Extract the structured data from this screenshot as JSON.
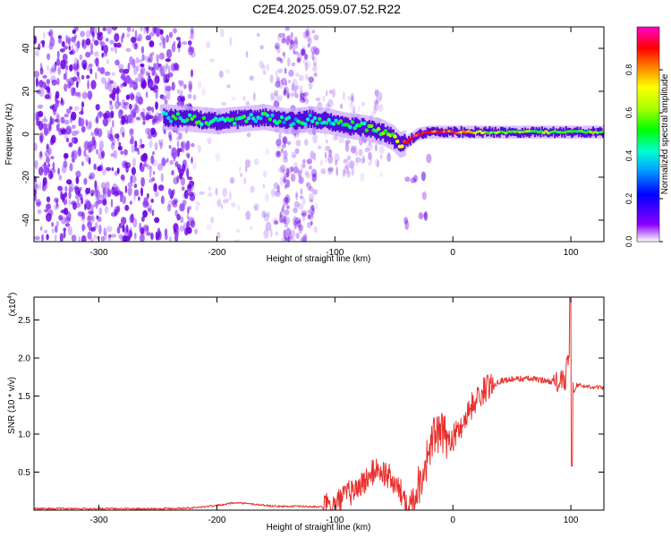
{
  "title": "C2E4.2025.059.07.52.R22",
  "chart_data": [
    {
      "type": "heatmap",
      "xlabel": "Height of straight line (km)",
      "ylabel": "Frequency (Hz)",
      "xlim": [
        -355,
        128
      ],
      "ylim": [
        -50,
        50
      ],
      "xticks": [
        -300,
        -200,
        -100,
        0,
        100
      ],
      "yticks": [
        -40,
        -20,
        0,
        20,
        40
      ],
      "colorbar": {
        "label": "Normalized spectral amplitude",
        "range": [
          0.0,
          1.0
        ],
        "ticks": [
          0.0,
          0.2,
          0.4,
          0.6,
          0.8
        ]
      },
      "ridge": {
        "x": [
          -245,
          -220,
          -200,
          -180,
          -160,
          -140,
          -120,
          -105,
          -90,
          -75,
          -60,
          -50,
          -45,
          -40,
          -35,
          -30,
          -20,
          -10,
          0,
          10,
          30,
          60,
          90,
          128
        ],
        "frequency": [
          8,
          7,
          6,
          7,
          8,
          6,
          7,
          6,
          4,
          3,
          1,
          -2,
          -5,
          -4,
          -2,
          0,
          1,
          1,
          1,
          1,
          1,
          1,
          1,
          1
        ],
        "amplitude": [
          0.45,
          0.5,
          0.45,
          0.5,
          0.45,
          0.4,
          0.45,
          0.4,
          0.45,
          0.5,
          0.55,
          0.6,
          0.75,
          0.85,
          0.9,
          0.9,
          0.9,
          0.85,
          0.85,
          0.8,
          0.6,
          0.55,
          0.55,
          0.55
        ]
      }
    },
    {
      "type": "line",
      "xlabel": "Height of straight line (km)",
      "ylabel": "SNR (10 * v/v)",
      "scale_label": "(x10",
      "scale_exponent": "4",
      "xlim": [
        -355,
        128
      ],
      "ylim": [
        0,
        2.8
      ],
      "xticks": [
        -300,
        -200,
        -100,
        0,
        100
      ],
      "yticks": [
        0.5,
        1.0,
        1.5,
        2.0,
        2.5
      ],
      "ytick_labels": [
        "0.5",
        "1.0",
        "1.5",
        "2.0",
        "2.5"
      ],
      "color": "#e8302e",
      "series": [
        {
          "name": "SNR",
          "x": [
            -355,
            -300,
            -250,
            -220,
            -200,
            -185,
            -170,
            -150,
            -130,
            -110,
            -100,
            -90,
            -80,
            -70,
            -65,
            -60,
            -55,
            -50,
            -45,
            -40,
            -35,
            -30,
            -25,
            -20,
            -15,
            -10,
            -5,
            0,
            5,
            10,
            15,
            20,
            25,
            30,
            35,
            40,
            50,
            60,
            70,
            80,
            90,
            95,
            98,
            100,
            102,
            105,
            110,
            120,
            128
          ],
          "y": [
            0.02,
            0.02,
            0.02,
            0.03,
            0.06,
            0.1,
            0.08,
            0.05,
            0.05,
            0.04,
            0.06,
            0.2,
            0.3,
            0.45,
            0.55,
            0.5,
            0.45,
            0.35,
            0.25,
            0.15,
            0.1,
            0.3,
            0.5,
            0.8,
            1.0,
            1.0,
            0.95,
            0.95,
            1.05,
            1.2,
            1.35,
            1.45,
            1.55,
            1.62,
            1.66,
            1.7,
            1.72,
            1.73,
            1.72,
            1.7,
            1.68,
            1.7,
            1.75,
            2.4,
            1.55,
            1.65,
            1.63,
            1.62,
            1.6
          ]
        }
      ]
    }
  ]
}
